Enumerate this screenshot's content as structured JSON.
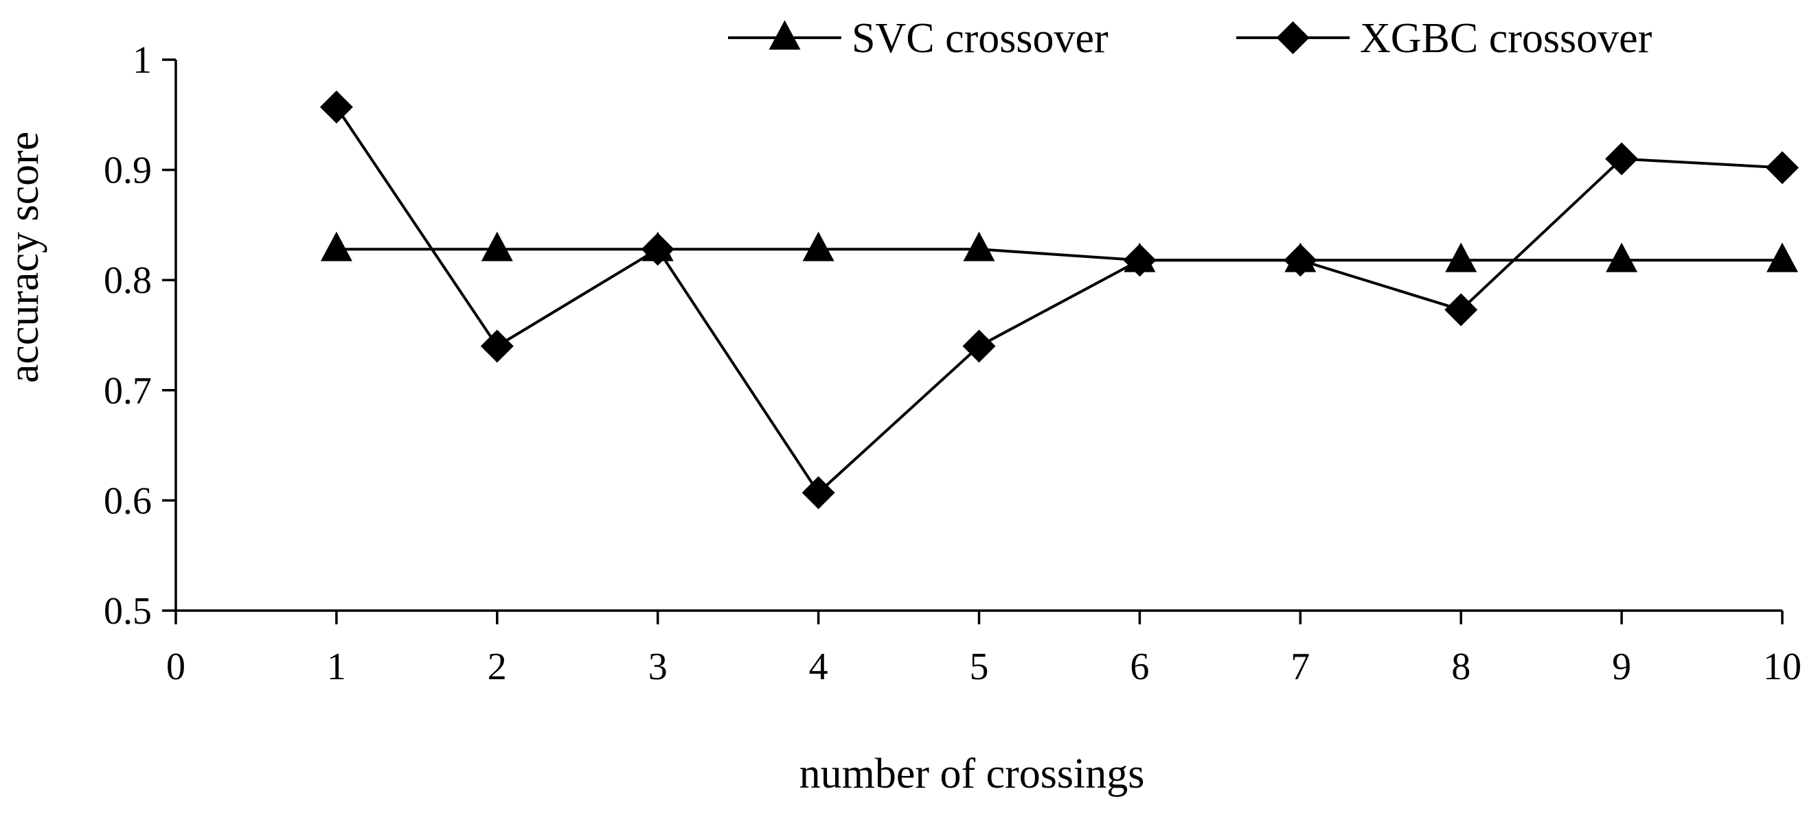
{
  "chart_data": {
    "type": "line",
    "title": "",
    "xlabel": "number of crossings",
    "ylabel": "accuracy score",
    "xlim": [
      0,
      10
    ],
    "ylim": [
      0.5,
      1.0
    ],
    "xticks": [
      0,
      1,
      2,
      3,
      4,
      5,
      6,
      7,
      8,
      9,
      10
    ],
    "xtick_labels": [
      "0",
      "1",
      "2",
      "3",
      "4",
      "5",
      "6",
      "7",
      "8",
      "9",
      "10"
    ],
    "yticks": [
      0.5,
      0.6,
      0.7,
      0.8,
      0.9,
      1.0
    ],
    "ytick_labels": [
      "0.5",
      "0.6",
      "0.7",
      "0.8",
      "0.9",
      "1"
    ],
    "grid": false,
    "legend_position": "top-right",
    "x": [
      1,
      2,
      3,
      4,
      5,
      6,
      7,
      8,
      9,
      10
    ],
    "series": [
      {
        "name": "SVC crossover",
        "marker": "triangle",
        "color": "#000000",
        "values": [
          0.828,
          0.828,
          0.828,
          0.828,
          0.828,
          0.818,
          0.818,
          0.818,
          0.818,
          0.818
        ]
      },
      {
        "name": "XGBC crossover",
        "marker": "diamond",
        "color": "#000000",
        "values": [
          0.957,
          0.74,
          0.828,
          0.607,
          0.74,
          0.818,
          0.818,
          0.773,
          0.91,
          0.902
        ]
      }
    ]
  }
}
